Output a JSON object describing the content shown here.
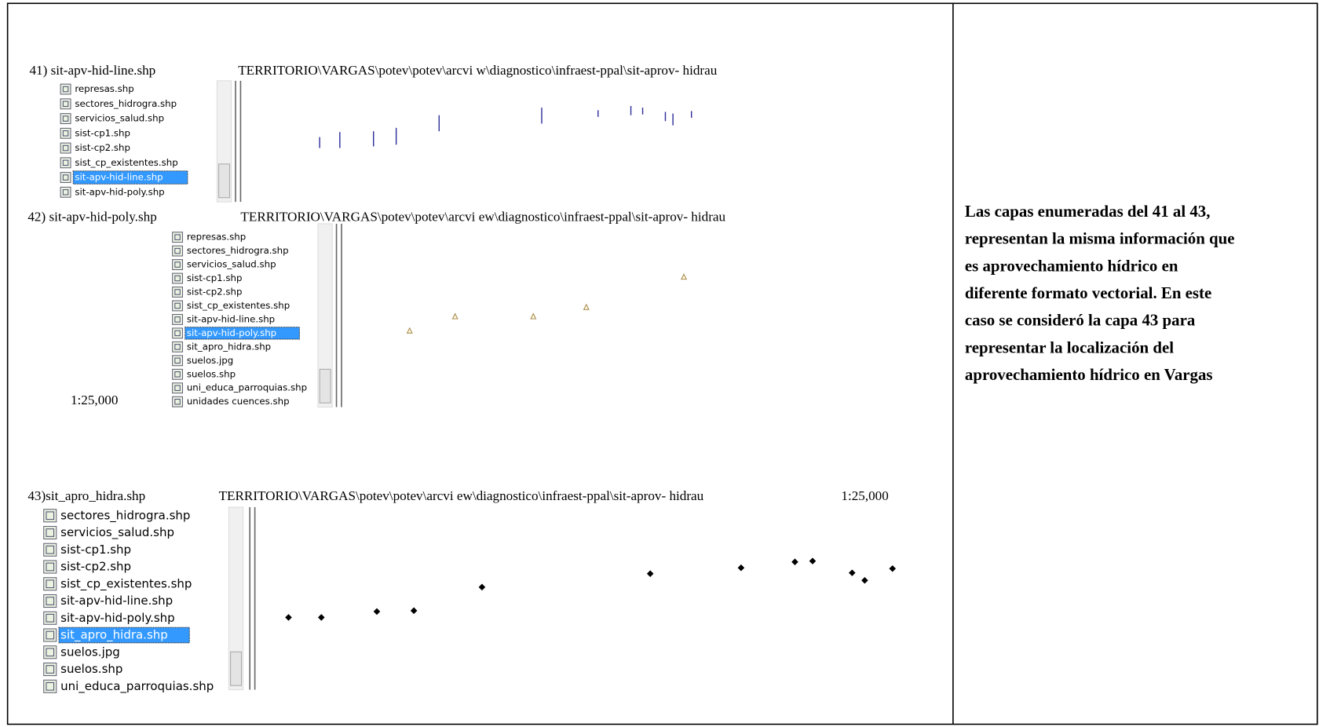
{
  "blocks": [
    {
      "label": "41) sit-apv-hid-line.shp",
      "path": "TERRITORIO\\VARGAS\\potev\\potev\\arcvi w\\diagnostico\\infraest-ppal\\sit-aprov- hidrau",
      "layers": [
        "represas.shp",
        "sectores_hidrogra.shp",
        "servicios_salud.shp",
        "sist-cp1.shp",
        "sist-cp2.shp",
        "sist_cp_existentes.shp",
        "sit-apv-hid-line.shp",
        "sit-apv-hid-poly.shp"
      ],
      "selected": 6
    },
    {
      "label": "42) sit-apv-hid-poly.shp",
      "path": "TERRITORIO\\VARGAS\\potev\\potev\\arcvi ew\\diagnostico\\infraest-ppal\\sit-aprov- hidrau",
      "scale": "1:25,000",
      "layers": [
        "represas.shp",
        "sectores_hidrogra.shp",
        "servicios_salud.shp",
        "sist-cp1.shp",
        "sist-cp2.shp",
        "sist_cp_existentes.shp",
        "sit-apv-hid-line.shp",
        "sit-apv-hid-poly.shp",
        "sit_apro_hidra.shp",
        "suelos.jpg",
        "suelos.shp",
        "uni_educa_parroquias.shp",
        "unidades cuences.shp"
      ],
      "selected": 7
    },
    {
      "label": "43)sit_apro_hidra.shp",
      "path": "TERRITORIO\\VARGAS\\potev\\potev\\arcvi ew\\diagnostico\\infraest-ppal\\sit-aprov- hidrau",
      "scale": "1:25,000",
      "layers": [
        "sectores_hidrogra.shp",
        "servicios_salud.shp",
        "sist-cp1.shp",
        "sist-cp2.shp",
        "sist_cp_existentes.shp",
        "sit-apv-hid-line.shp",
        "sit-apv-hid-poly.shp",
        "sit_apro_hidra.shp",
        "suelos.jpg",
        "suelos.shp",
        "uni_educa_parroquias.shp"
      ],
      "selected": 7
    }
  ],
  "note_lines": [
    "Las capas enumeradas del 41 al 43,",
    "representan la misma información que",
    "es aprovechamiento hídrico en",
    "diferente formato vectorial. En este",
    "caso se consideró la capa 43 para",
    "representar la localización del",
    "aprovechamiento hídrico en Vargas"
  ]
}
